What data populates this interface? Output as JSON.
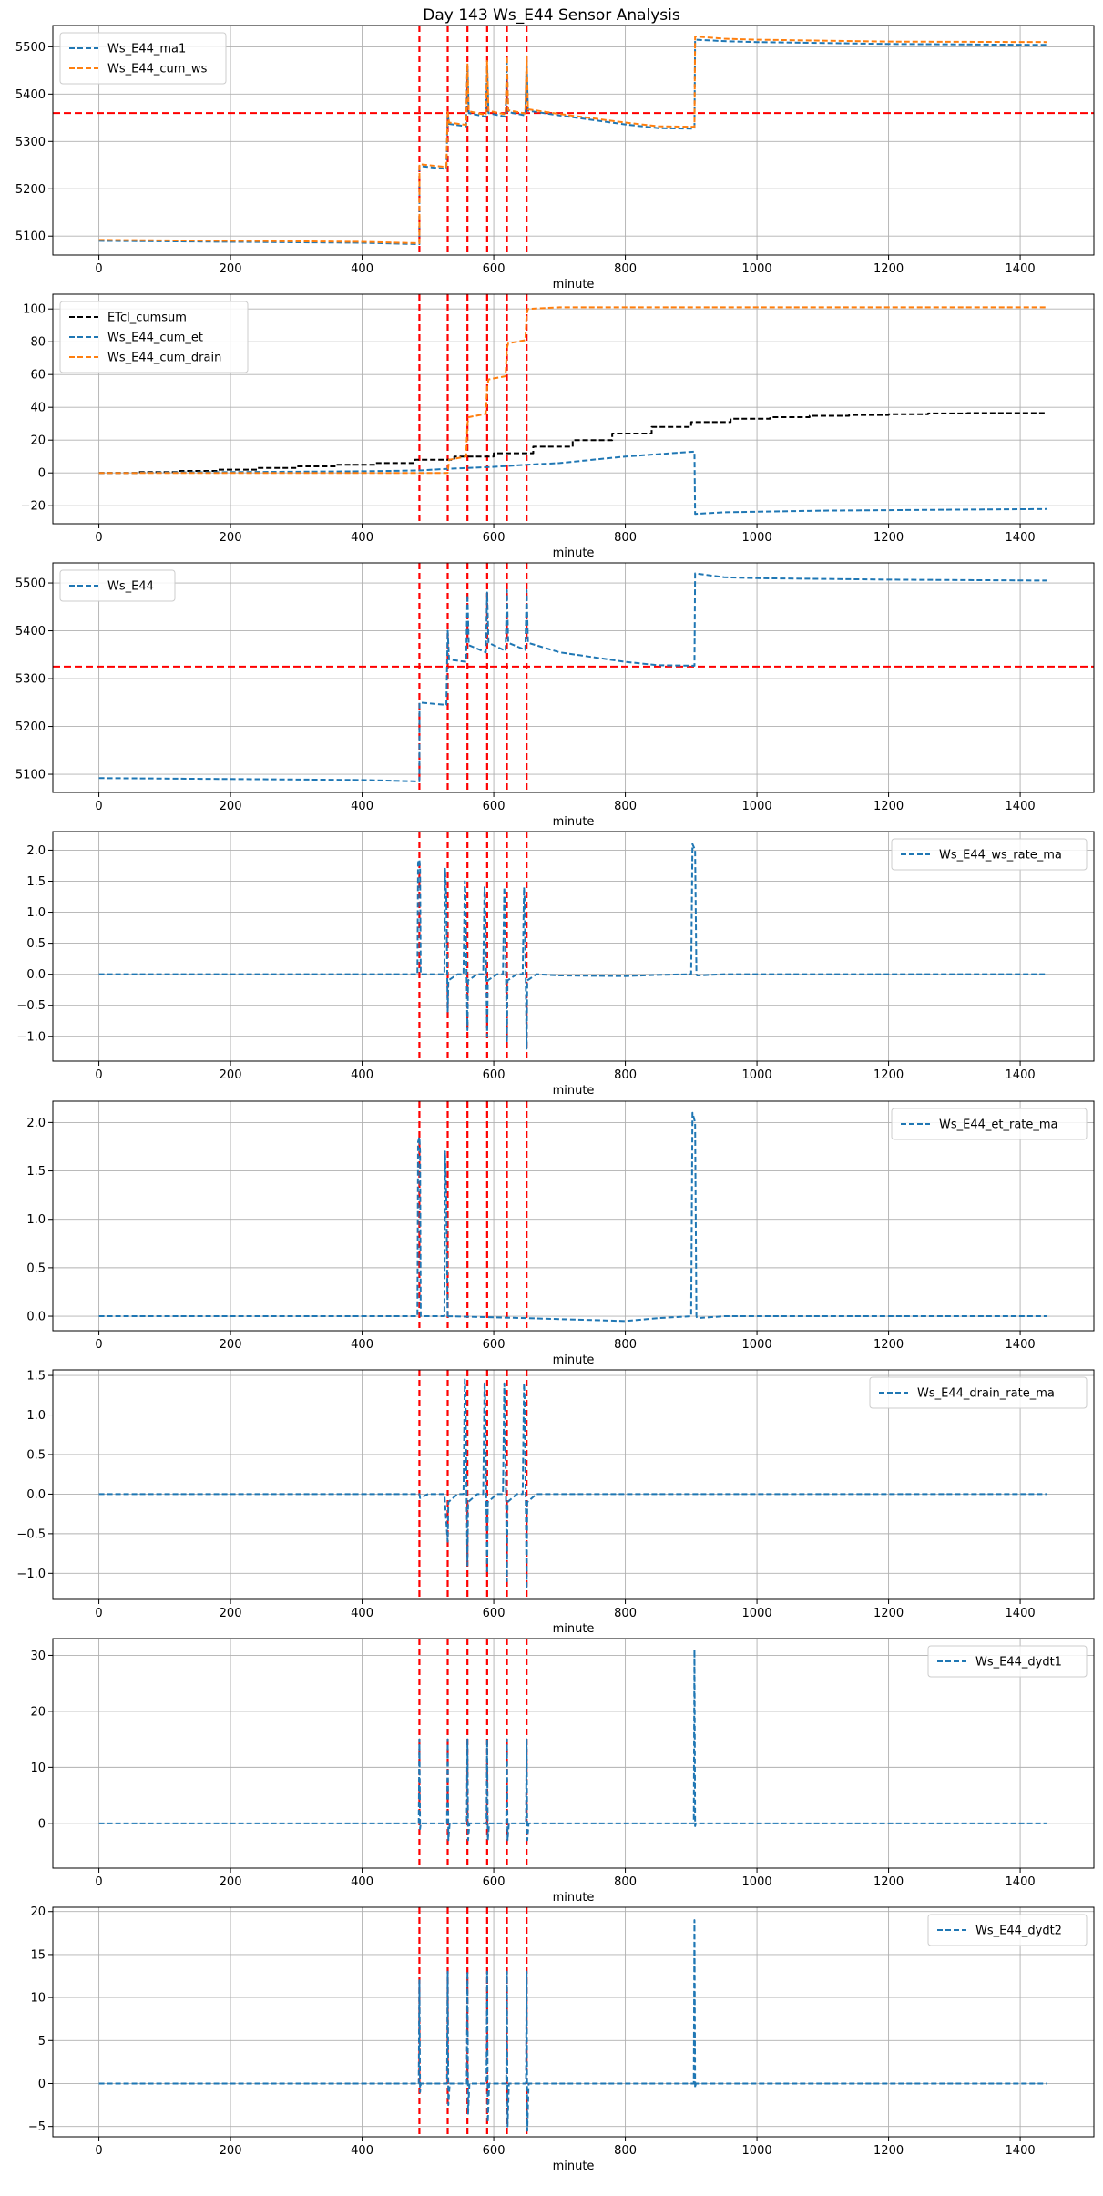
{
  "figure_title": "Day 143 Ws_E44 Sensor Analysis",
  "colors": {
    "blue": "#1f77b4",
    "orange": "#ff7f0e",
    "black": "#000000",
    "red": "#ff0000",
    "grid": "#b0b0b0"
  },
  "event_minutes": [
    487,
    530,
    560,
    590,
    620,
    650
  ],
  "chart_data": [
    {
      "type": "line",
      "xlabel": "minute",
      "xlim": [
        -70,
        1512
      ],
      "xticks": [
        0,
        200,
        400,
        600,
        800,
        1000,
        1200,
        1400
      ],
      "ylim": [
        5060,
        5545
      ],
      "yticks": [
        5100,
        5200,
        5300,
        5400,
        5500
      ],
      "grid": true,
      "legend": "upper-left",
      "hline": 5360,
      "series": [
        {
          "name": "Ws_E44_ma1",
          "color": "blue",
          "dash": true,
          "x": [
            0,
            200,
            400,
            487,
            487.1,
            528,
            530,
            532,
            558,
            560,
            562,
            588,
            590,
            592,
            618,
            620,
            622,
            648,
            650,
            652,
            700,
            800,
            850,
            905,
            906,
            950,
            1000,
            1200,
            1440
          ],
          "y": [
            5090,
            5088,
            5086,
            5083,
            5248,
            5242,
            5360,
            5337,
            5332,
            5460,
            5360,
            5352,
            5460,
            5360,
            5352,
            5470,
            5362,
            5355,
            5470,
            5365,
            5355,
            5336,
            5328,
            5327,
            5515,
            5512,
            5510,
            5506,
            5504
          ]
        },
        {
          "name": "Ws_E44_cum_ws",
          "color": "orange",
          "dash": true,
          "x": [
            0,
            200,
            400,
            487,
            487.1,
            528,
            530,
            532,
            558,
            560,
            562,
            588,
            590,
            592,
            618,
            620,
            622,
            648,
            650,
            652,
            700,
            800,
            850,
            905,
            906,
            950,
            1000,
            1200,
            1440
          ],
          "y": [
            5092,
            5090,
            5088,
            5085,
            5252,
            5246,
            5365,
            5340,
            5335,
            5465,
            5364,
            5356,
            5470,
            5365,
            5357,
            5480,
            5366,
            5359,
            5480,
            5368,
            5358,
            5340,
            5332,
            5331,
            5522,
            5517,
            5515,
            5511,
            5510
          ]
        }
      ]
    },
    {
      "type": "line",
      "xlabel": "minute",
      "xlim": [
        -70,
        1512
      ],
      "xticks": [
        0,
        200,
        400,
        600,
        800,
        1000,
        1200,
        1400
      ],
      "ylim": [
        -31,
        109
      ],
      "yticks": [
        -20,
        0,
        20,
        40,
        60,
        80,
        100
      ],
      "grid": true,
      "legend": "upper-left",
      "series": [
        {
          "name": "ETcl_cumsum",
          "color": "black",
          "dash": true,
          "x": [
            0,
            60,
            60,
            120,
            120,
            180,
            180,
            240,
            240,
            300,
            300,
            360,
            360,
            420,
            420,
            480,
            480,
            540,
            540,
            600,
            600,
            660,
            660,
            720,
            720,
            780,
            780,
            840,
            840,
            900,
            900,
            960,
            960,
            1020,
            1020,
            1080,
            1080,
            1140,
            1140,
            1200,
            1200,
            1260,
            1260,
            1320,
            1320,
            1440
          ],
          "y": [
            0,
            0,
            0.5,
            0.5,
            1.2,
            1.2,
            2,
            2,
            3,
            3,
            4,
            4,
            5,
            5,
            6,
            6,
            8,
            8,
            10,
            10,
            12,
            12,
            16,
            16,
            20,
            20,
            24,
            24,
            28,
            28,
            31,
            31,
            33,
            33,
            34,
            34,
            34.8,
            34.8,
            35.3,
            35.3,
            35.8,
            35.8,
            36.3,
            36.3,
            36.5,
            36.5
          ]
        },
        {
          "name": "Ws_E44_cum_et",
          "color": "blue",
          "dash": true,
          "x": [
            0,
            200,
            400,
            487,
            530,
            560,
            590,
            620,
            650,
            700,
            800,
            905,
            906,
            950,
            1100,
            1440
          ],
          "y": [
            0,
            0.5,
            1,
            1.5,
            2.5,
            3,
            3.5,
            4.2,
            5,
            6,
            10,
            13,
            -25,
            -24,
            -23,
            -22
          ]
        },
        {
          "name": "Ws_E44_cum_drain",
          "color": "orange",
          "dash": true,
          "x": [
            0,
            487,
            530,
            532,
            558,
            560,
            562,
            588,
            590,
            592,
            618,
            620,
            622,
            648,
            650,
            652,
            700,
            1440
          ],
          "y": [
            0,
            0,
            0,
            8,
            10,
            30,
            34,
            36,
            52,
            57,
            59,
            76,
            79,
            81,
            97,
            100,
            101,
            101
          ]
        }
      ]
    },
    {
      "type": "line",
      "xlabel": "minute",
      "xlim": [
        -70,
        1512
      ],
      "xticks": [
        0,
        200,
        400,
        600,
        800,
        1000,
        1200,
        1400
      ],
      "ylim": [
        5062,
        5542
      ],
      "yticks": [
        5100,
        5200,
        5300,
        5400,
        5500
      ],
      "grid": true,
      "legend": "upper-left",
      "hline": 5325,
      "series": [
        {
          "name": "Ws_E44",
          "color": "blue",
          "dash": true,
          "x": [
            0,
            200,
            400,
            487,
            487.1,
            528,
            530,
            532,
            558,
            560,
            562,
            588,
            590,
            592,
            618,
            620,
            622,
            648,
            650,
            652,
            700,
            800,
            850,
            905,
            906,
            950,
            1000,
            1200,
            1440
          ],
          "y": [
            5092,
            5090,
            5088,
            5085,
            5250,
            5245,
            5400,
            5340,
            5335,
            5475,
            5370,
            5355,
            5480,
            5375,
            5358,
            5485,
            5375,
            5360,
            5485,
            5375,
            5355,
            5335,
            5328,
            5327,
            5520,
            5512,
            5510,
            5507,
            5505
          ]
        }
      ]
    },
    {
      "type": "line",
      "xlabel": "minute",
      "xlim": [
        -70,
        1512
      ],
      "xticks": [
        0,
        200,
        400,
        600,
        800,
        1000,
        1200,
        1400
      ],
      "ylim": [
        -1.4,
        2.3
      ],
      "yticks": [
        -1.0,
        -0.5,
        0.0,
        0.5,
        1.0,
        1.5,
        2.0
      ],
      "grid": true,
      "legend": "upper-right",
      "series": [
        {
          "name": "Ws_E44_ws_rate_ma",
          "color": "blue",
          "dash": true,
          "x": [
            0,
            484,
            485,
            487,
            488,
            489,
            525,
            526,
            528,
            530,
            531,
            545,
            554,
            556,
            557,
            560,
            561,
            575,
            584,
            586,
            587,
            590,
            591,
            605,
            614,
            616,
            617,
            620,
            621,
            635,
            644,
            646,
            647,
            650,
            651,
            665,
            700,
            800,
            850,
            900,
            902,
            904,
            906,
            908,
            909,
            950,
            1440
          ],
          "y": [
            0,
            0,
            1.8,
            1.85,
            1.7,
            0,
            0,
            1.7,
            1.2,
            -0.6,
            -0.1,
            0,
            0,
            1.5,
            1.3,
            -0.9,
            -0.1,
            0,
            0,
            1.4,
            1.2,
            -1.0,
            -0.1,
            0,
            0,
            1.4,
            1.2,
            -1.1,
            -0.1,
            0,
            0,
            1.4,
            1.2,
            -1.2,
            -0.1,
            0,
            -0.02,
            -0.03,
            -0.01,
            0,
            2.1,
            2.05,
            2.0,
            0,
            -0.02,
            0,
            0
          ]
        }
      ]
    },
    {
      "type": "line",
      "xlabel": "minute",
      "xlim": [
        -70,
        1512
      ],
      "xticks": [
        0,
        200,
        400,
        600,
        800,
        1000,
        1200,
        1400
      ],
      "ylim": [
        -0.15,
        2.22
      ],
      "yticks": [
        0.0,
        0.5,
        1.0,
        1.5,
        2.0
      ],
      "grid": true,
      "legend": "upper-right",
      "series": [
        {
          "name": "Ws_E44_et_rate_ma",
          "color": "blue",
          "dash": true,
          "x": [
            0,
            484,
            485,
            487,
            488,
            489,
            525,
            526,
            528,
            530,
            531,
            650,
            700,
            800,
            850,
            900,
            902,
            904,
            906,
            908,
            909,
            950,
            1440
          ],
          "y": [
            0,
            0,
            1.8,
            1.85,
            1.7,
            0,
            0,
            1.7,
            1.2,
            -0.02,
            0,
            -0.02,
            -0.03,
            -0.05,
            -0.02,
            0,
            2.1,
            2.05,
            2.0,
            0,
            -0.02,
            0,
            0
          ]
        }
      ]
    },
    {
      "type": "line",
      "xlabel": "minute",
      "xlim": [
        -70,
        1512
      ],
      "xticks": [
        0,
        200,
        400,
        600,
        800,
        1000,
        1200,
        1400
      ],
      "ylim": [
        -1.33,
        1.57
      ],
      "yticks": [
        -1.0,
        -0.5,
        0.0,
        0.5,
        1.0,
        1.5
      ],
      "grid": true,
      "legend": "upper-right",
      "series": [
        {
          "name": "Ws_E44_drain_rate_ma",
          "color": "blue",
          "dash": true,
          "x": [
            0,
            487,
            488,
            500,
            525,
            530,
            531,
            545,
            554,
            556,
            557,
            560,
            561,
            575,
            584,
            586,
            587,
            590,
            591,
            605,
            614,
            616,
            617,
            620,
            621,
            635,
            644,
            646,
            647,
            650,
            651,
            665,
            1440
          ],
          "y": [
            0,
            0,
            -0.05,
            0,
            0,
            -0.6,
            -0.1,
            0,
            0,
            1.45,
            1.3,
            -0.9,
            -0.1,
            0,
            0,
            1.4,
            1.2,
            -1.0,
            -0.1,
            0,
            0,
            1.4,
            1.2,
            -1.1,
            -0.1,
            0,
            0,
            1.4,
            1.2,
            -1.2,
            -0.1,
            0,
            0
          ]
        }
      ]
    },
    {
      "type": "line",
      "xlabel": "minute",
      "xlim": [
        -70,
        1512
      ],
      "xticks": [
        0,
        200,
        400,
        600,
        800,
        1000,
        1200,
        1400
      ],
      "ylim": [
        -8,
        33
      ],
      "yticks": [
        0,
        10,
        20,
        30
      ],
      "grid": true,
      "legend": "upper-right",
      "series": [
        {
          "name": "Ws_E44_dydt1",
          "color": "blue",
          "dash": true,
          "x": [
            0,
            486,
            487,
            488,
            489,
            529,
            530,
            531,
            533,
            559,
            560,
            561,
            563,
            589,
            590,
            591,
            593,
            619,
            620,
            621,
            623,
            649,
            650,
            651,
            653,
            904,
            905,
            906,
            907,
            1440
          ],
          "y": [
            0,
            0,
            15,
            -1,
            0,
            0,
            15,
            -3,
            0,
            0,
            15,
            -3,
            0,
            0,
            15,
            -3,
            0,
            0,
            15,
            -3,
            0,
            0,
            15,
            -3,
            0,
            0,
            31,
            -0.5,
            0,
            0
          ]
        }
      ]
    },
    {
      "type": "line",
      "xlabel": "minute",
      "xlim": [
        -70,
        1512
      ],
      "xticks": [
        0,
        200,
        400,
        600,
        800,
        1000,
        1200,
        1400
      ],
      "ylim": [
        -6.2,
        20.5
      ],
      "yticks": [
        -5,
        0,
        5,
        10,
        15,
        20
      ],
      "grid": true,
      "legend": "upper-right",
      "series": [
        {
          "name": "Ws_E44_dydt2",
          "color": "blue",
          "dash": true,
          "x": [
            0,
            486,
            487,
            488,
            489,
            529,
            530,
            531,
            533,
            559,
            560,
            561,
            563,
            589,
            590,
            591,
            593,
            619,
            620,
            621,
            623,
            649,
            650,
            651,
            653,
            904,
            905,
            906,
            907,
            1440
          ],
          "y": [
            0,
            0,
            12,
            -1,
            0,
            0,
            13,
            -2.5,
            0,
            0,
            13,
            -3.5,
            0,
            0,
            13,
            -4.5,
            0,
            0,
            13,
            -5,
            0,
            0,
            13,
            -5.5,
            0,
            0,
            19,
            -0.5,
            0,
            0
          ]
        }
      ]
    }
  ]
}
